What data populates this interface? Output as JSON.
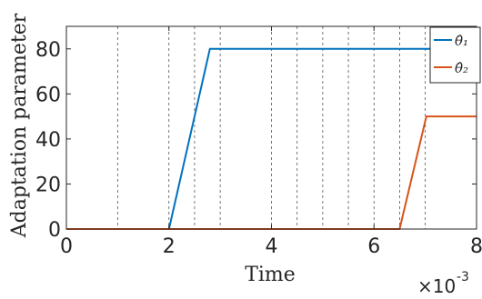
{
  "chart_data": {
    "type": "line",
    "xlabel": "Time",
    "ylabel": "Adaptation parameter",
    "xlim": [
      0,
      0.008
    ],
    "ylim": [
      0,
      90
    ],
    "x_exponent_label": "×10",
    "x_exponent_power": "-3",
    "xticks": [
      0,
      0.002,
      0.004,
      0.006,
      0.008
    ],
    "xtick_labels": [
      "0",
      "2",
      "4",
      "6",
      "8"
    ],
    "yticks": [
      0,
      20,
      40,
      60,
      80
    ],
    "ytick_labels": [
      "0",
      "20",
      "40",
      "60",
      "80"
    ],
    "vertical_dashed_lines": [
      0.001,
      0.002,
      0.0025,
      0.003,
      0.004,
      0.0045,
      0.005,
      0.0055,
      0.006,
      0.0065,
      0.007
    ],
    "grid": false,
    "legend_position": "top-right",
    "series": [
      {
        "name": "θ̂₁",
        "color": "#0072BD",
        "x": [
          0,
          0.002,
          0.0028,
          0.008
        ],
        "y": [
          0,
          0,
          80,
          80
        ]
      },
      {
        "name": "θ̂₂",
        "color": "#D95319",
        "x": [
          0,
          0.0065,
          0.00702,
          0.008
        ],
        "y": [
          0,
          0,
          50,
          50
        ]
      }
    ]
  }
}
